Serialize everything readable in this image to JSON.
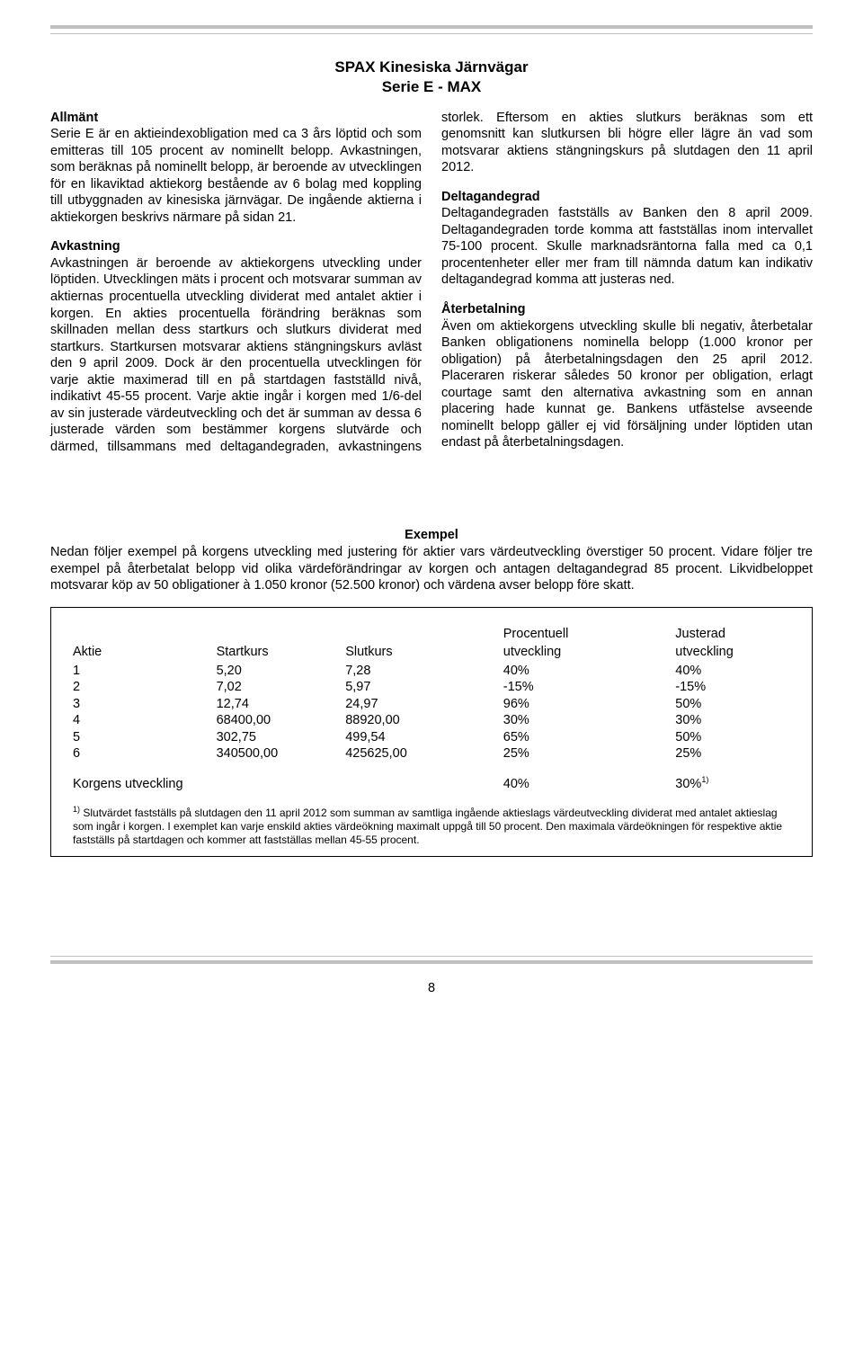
{
  "header": {
    "title": "SPAX Kinesiska Järnvägar",
    "subtitle": "Serie E - MAX"
  },
  "sections": {
    "allmant": {
      "heading": "Allmänt",
      "body": "Serie E är en aktieindexobligation med ca 3 års löptid och som emitteras till 105 procent av nominellt belopp. Avkastningen, som beräknas på nominellt belopp, är beroende av utvecklingen för en likaviktad aktiekorg bestående av 6 bolag med koppling till utbyggnaden av kinesiska järnvägar. De ingående aktierna i aktiekorgen beskrivs närmare på sidan 21."
    },
    "avkastning": {
      "heading": "Avkastning",
      "body": "Avkastningen är beroende av aktiekorgens utveckling under löptiden. Utvecklingen mäts i procent och motsvarar summan av aktiernas procentuella utveckling dividerat med antalet aktier i korgen. En akties procentuella förändring beräknas som skillnaden mellan dess startkurs och slutkurs dividerat med startkurs. Startkursen motsvarar aktiens stängningskurs avläst den 9 april 2009. Dock är den procentuella utvecklingen för varje aktie maximerad till en på startdagen fastställd nivå, indikativt 45-55 procent. Varje aktie ingår i korgen med 1/6-del av sin justerade värdeutveckling och det är summan av dessa 6 justerade värden som bestämmer korgens slutvärde och därmed, tillsammans med deltagandegraden, avkastningens storlek. Eftersom en akties slutkurs beräknas som ett genomsnitt kan slutkursen bli högre eller lägre än vad som motsvarar aktiens stängningskurs på slutdagen den 11 april 2012."
    },
    "deltagandegrad": {
      "heading": "Deltagandegrad",
      "body": "Deltagandegraden fastställs av Banken den 8 april 2009. Deltagandegraden torde komma att fastställas inom intervallet 75-100 procent. Skulle marknadsräntorna falla med ca 0,1 procentenheter eller mer fram till nämnda datum kan indikativ deltagandegrad komma att justeras ned."
    },
    "aterbetalning": {
      "heading": "Återbetalning",
      "body": "Även om aktiekorgens utveckling skulle bli negativ, återbetalar Banken obligationens nominella belopp (1.000 kronor per obligation) på återbetalningsdagen den 25 april 2012. Placeraren riskerar således 50 kronor per obligation, erlagt courtage samt den alternativa avkastning som en annan placering hade kunnat ge. Bankens utfästelse avseende nominellt belopp gäller ej vid försäljning under löptiden utan endast på återbetalningsdagen."
    }
  },
  "example": {
    "title": "Exempel",
    "intro": "Nedan följer exempel på korgens utveckling med justering för aktier vars värdeutveckling överstiger 50 procent. Vidare följer tre exempel på återbetalat belopp vid olika värdeförändringar av korgen och antagen deltagandegrad 85 procent. Likvidbeloppet motsvarar köp av 50 obligationer à 1.050 kronor (52.500 kronor) och värdena avser belopp före skatt.",
    "columns": {
      "aktie": "Aktie",
      "startkurs": "Startkurs",
      "slutkurs": "Slutkurs",
      "procentuell_l1": "Procentuell",
      "procentuell_l2": "utveckling",
      "justerad_l1": "Justerad",
      "justerad_l2": "utveckling"
    },
    "rows": [
      {
        "aktie": "1",
        "start": "5,20",
        "slut": "7,28",
        "proc": "40%",
        "just": "40%"
      },
      {
        "aktie": "2",
        "start": "7,02",
        "slut": "5,97",
        "proc": "-15%",
        "just": "-15%"
      },
      {
        "aktie": "3",
        "start": "12,74",
        "slut": "24,97",
        "proc": "96%",
        "just": "50%"
      },
      {
        "aktie": "4",
        "start": "68400,00",
        "slut": "88920,00",
        "proc": "30%",
        "just": "30%"
      },
      {
        "aktie": "5",
        "start": "302,75",
        "slut": "499,54",
        "proc": "65%",
        "just": "50%"
      },
      {
        "aktie": "6",
        "start": "340500,00",
        "slut": "425625,00",
        "proc": "25%",
        "just": "25%"
      }
    ],
    "summary": {
      "label": "Korgens utveckling",
      "proc": "40%",
      "just": "30%",
      "just_sup": "1)"
    },
    "footnote_sup": "1)",
    "footnote": " Slutvärdet fastställs på slutdagen den 11 april 2012 som summan av samtliga ingående aktieslags värdeutveckling dividerat med antalet aktieslag som ingår i korgen. I exemplet kan varje enskild akties värdeökning maximalt uppgå till 50 procent. Den maximala värdeökningen för respektive aktie fastställs på startdagen och kommer att fastställas mellan 45-55 procent."
  },
  "page_number": "8"
}
